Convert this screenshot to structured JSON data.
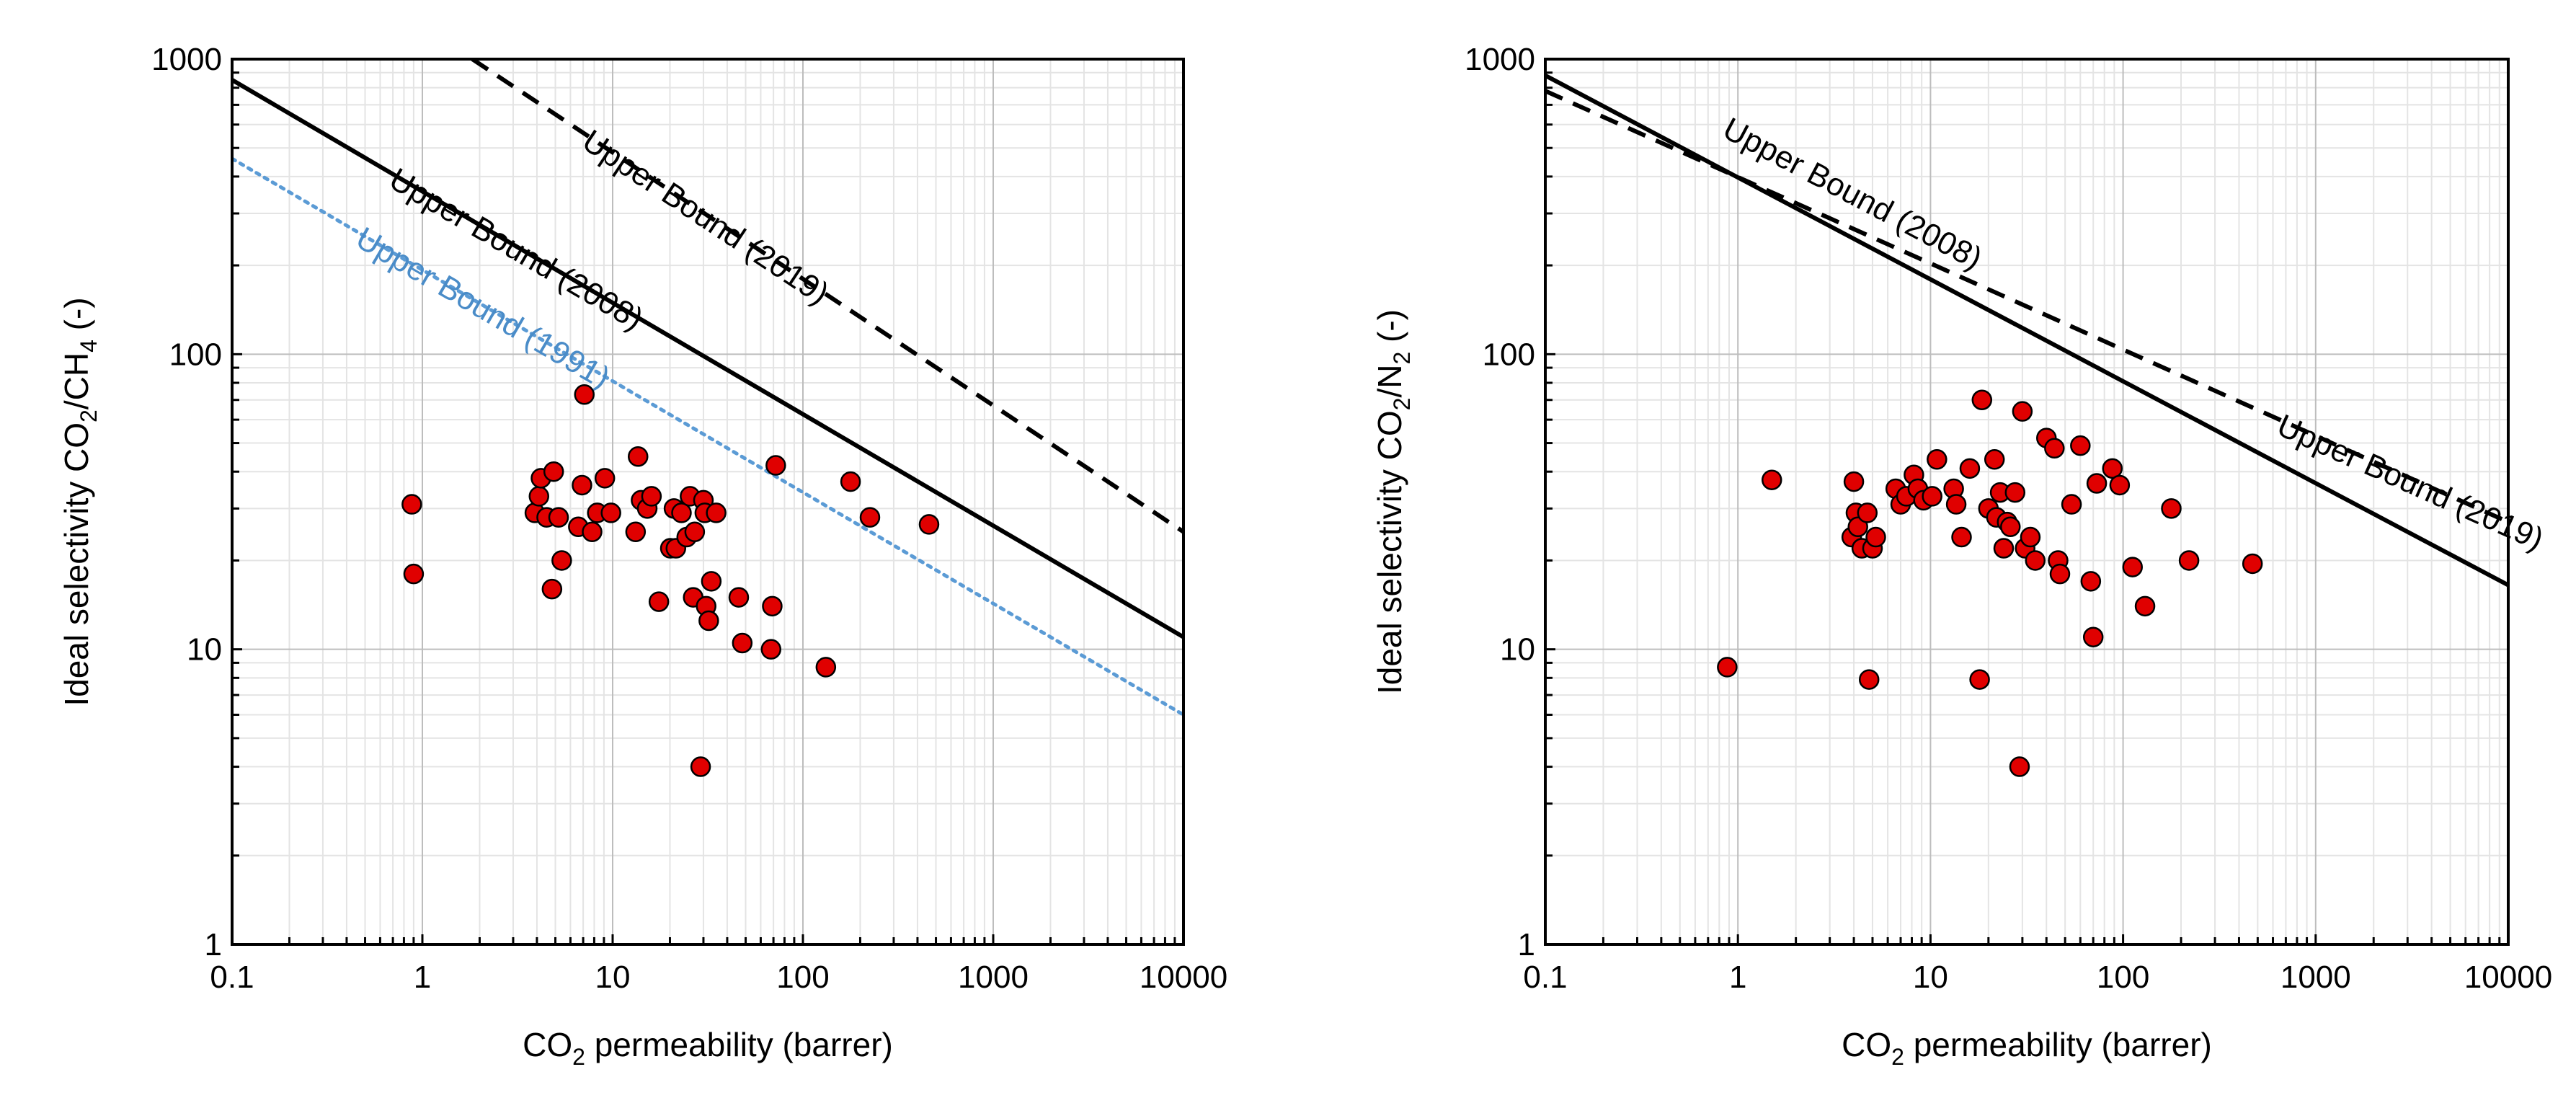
{
  "chart_data": [
    {
      "type": "scatter",
      "scale": "log-log",
      "xlabel": {
        "prefix": "CO",
        "sub": "2",
        "suffix": " permeability (barrer)"
      },
      "ylabel": {
        "prefix": "Ideal selectivity CO",
        "sub1": "2",
        "mid": "/CH",
        "sub2": "4",
        "suffix": " (-)"
      },
      "xlim": [
        0.1,
        10000
      ],
      "ylim": [
        1,
        1000
      ],
      "xticks": [
        "0.1",
        "1",
        "10",
        "100",
        "1000",
        "10000"
      ],
      "yticks": [
        "1",
        "10",
        "100",
        "1000"
      ],
      "grid": true,
      "bounds": [
        {
          "label": "Upper Bound (2008)",
          "style": "solid",
          "color": "#000000",
          "p1": [
            0.1,
            850
          ],
          "p2": [
            10000,
            11
          ]
        },
        {
          "label": "Upper Bound (2019)",
          "style": "dashed",
          "color": "#000000",
          "p1": [
            1.83,
            1000
          ],
          "p2": [
            10000,
            25
          ]
        },
        {
          "label": "Upper Bound (1991)",
          "style": "dotted",
          "color": "#5b9bd5",
          "p1": [
            0.1,
            460
          ],
          "p2": [
            10000,
            6
          ]
        }
      ],
      "points": [
        [
          0.88,
          31
        ],
        [
          0.9,
          18
        ],
        [
          3.9,
          29
        ],
        [
          4.1,
          33
        ],
        [
          4.2,
          38
        ],
        [
          4.5,
          28
        ],
        [
          4.8,
          16
        ],
        [
          4.9,
          40
        ],
        [
          5.2,
          28
        ],
        [
          5.4,
          20
        ],
        [
          6.6,
          26
        ],
        [
          6.9,
          36
        ],
        [
          7.1,
          73
        ],
        [
          7.8,
          25
        ],
        [
          8.3,
          29
        ],
        [
          9.1,
          38
        ],
        [
          9.8,
          29
        ],
        [
          13.2,
          25
        ],
        [
          13.6,
          45
        ],
        [
          14.1,
          32
        ],
        [
          15.2,
          30
        ],
        [
          16.0,
          33
        ],
        [
          17.5,
          14.5
        ],
        [
          20.1,
          22
        ],
        [
          21.0,
          30
        ],
        [
          21.5,
          22
        ],
        [
          23.0,
          29
        ],
        [
          24.5,
          24
        ],
        [
          25.5,
          33
        ],
        [
          26.5,
          15
        ],
        [
          27.0,
          25
        ],
        [
          29.0,
          4.0
        ],
        [
          30.0,
          32
        ],
        [
          30.5,
          29
        ],
        [
          31.0,
          14
        ],
        [
          32.0,
          12.5
        ],
        [
          33.0,
          17
        ],
        [
          35.0,
          29
        ],
        [
          46.0,
          15
        ],
        [
          48.0,
          10.5
        ],
        [
          68.0,
          10.0
        ],
        [
          69.0,
          14
        ],
        [
          72.0,
          42
        ],
        [
          132.0,
          8.7
        ],
        [
          178.0,
          37
        ],
        [
          225.0,
          28
        ],
        [
          460.0,
          26.5
        ]
      ]
    },
    {
      "type": "scatter",
      "scale": "log-log",
      "xlabel": {
        "prefix": "CO",
        "sub": "2",
        "suffix": " permeability (barrer)"
      },
      "ylabel": {
        "prefix": "Ideal selectivity CO",
        "sub1": "2",
        "mid": "/N",
        "sub2": "2",
        "suffix": " (-)"
      },
      "xlim": [
        0.1,
        10000
      ],
      "ylim": [
        1,
        1000
      ],
      "xticks": [
        "0.1",
        "1",
        "10",
        "100",
        "1000",
        "10000"
      ],
      "yticks": [
        "1",
        "10",
        "100",
        "1000"
      ],
      "grid": true,
      "bounds": [
        {
          "label": "Upper Bound (2008)",
          "style": "solid",
          "color": "#000000",
          "p1": [
            0.1,
            880
          ],
          "p2": [
            10000,
            16.5
          ]
        },
        {
          "label": "Upper Bound (2019)",
          "style": "dashed",
          "color": "#000000",
          "p1": [
            0.1,
            780
          ],
          "p2": [
            10000,
            27
          ]
        }
      ],
      "points": [
        [
          0.88,
          8.7
        ],
        [
          1.5,
          37.5
        ],
        [
          3.9,
          24
        ],
        [
          4.0,
          37
        ],
        [
          4.1,
          29
        ],
        [
          4.2,
          26
        ],
        [
          4.4,
          22
        ],
        [
          4.7,
          29
        ],
        [
          4.8,
          7.9
        ],
        [
          5.0,
          22
        ],
        [
          5.2,
          24
        ],
        [
          6.6,
          35
        ],
        [
          7.0,
          31
        ],
        [
          7.5,
          33
        ],
        [
          8.2,
          39
        ],
        [
          8.6,
          35
        ],
        [
          9.2,
          32
        ],
        [
          10.2,
          33
        ],
        [
          10.8,
          44
        ],
        [
          13.2,
          35
        ],
        [
          13.6,
          31
        ],
        [
          14.5,
          24
        ],
        [
          16.0,
          41
        ],
        [
          18.0,
          7.9
        ],
        [
          18.5,
          70
        ],
        [
          20.0,
          30
        ],
        [
          21.5,
          44
        ],
        [
          22.0,
          28
        ],
        [
          23.0,
          34
        ],
        [
          24.0,
          22
        ],
        [
          25.0,
          27
        ],
        [
          26.0,
          26
        ],
        [
          27.5,
          34
        ],
        [
          29.0,
          4.0
        ],
        [
          30.0,
          64
        ],
        [
          31.0,
          22
        ],
        [
          33.0,
          24
        ],
        [
          35.0,
          20
        ],
        [
          40.0,
          52
        ],
        [
          44.0,
          48
        ],
        [
          46.0,
          20
        ],
        [
          47.0,
          18
        ],
        [
          54.0,
          31
        ],
        [
          60.0,
          49
        ],
        [
          68.0,
          17
        ],
        [
          70.0,
          11
        ],
        [
          73.0,
          36.5
        ],
        [
          88.0,
          41
        ],
        [
          96.0,
          36
        ],
        [
          112.0,
          19
        ],
        [
          130.0,
          14
        ],
        [
          178.0,
          30
        ],
        [
          220.0,
          20
        ],
        [
          470.0,
          19.5
        ]
      ]
    }
  ]
}
